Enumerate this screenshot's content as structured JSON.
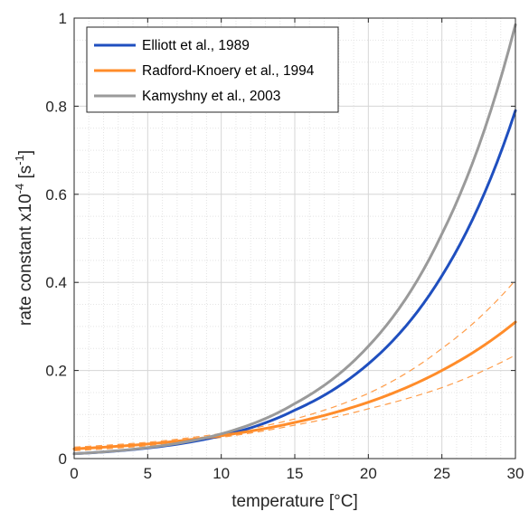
{
  "chart_data": {
    "type": "line",
    "xlabel": "temperature [°C]",
    "ylabel": {
      "prefix": "rate constant x10",
      "exponent": "-4",
      "unit_open": " [s",
      "unit_exponent": "-1",
      "unit_close": "]"
    },
    "xlim": [
      0,
      30
    ],
    "ylim": [
      0,
      1
    ],
    "x_ticks": [
      0,
      5,
      10,
      15,
      20,
      25,
      30
    ],
    "y_ticks": [
      0,
      0.2,
      0.4,
      0.6,
      0.8,
      1
    ],
    "x_tick_labels": [
      "0",
      "5",
      "10",
      "15",
      "20",
      "25",
      "30"
    ],
    "y_tick_labels": [
      "0",
      "0.2",
      "0.4",
      "0.6",
      "0.8",
      "1"
    ],
    "grid": true,
    "minor_grid": true,
    "legend_position": "top-left",
    "series": [
      {
        "name": "Elliott et al., 1989",
        "color": "#1f4fbf",
        "x": [
          0,
          5,
          10,
          11,
          15,
          20,
          25,
          30
        ],
        "y": [
          0.011,
          0.024,
          0.052,
          0.06,
          0.11,
          0.215,
          0.415,
          0.79
        ]
      },
      {
        "name": "Radford-Knoery et al., 1994",
        "color": "#ff8c2a",
        "x": [
          0,
          5,
          10,
          11,
          15,
          20,
          25,
          30
        ],
        "y": [
          0.022,
          0.033,
          0.052,
          0.057,
          0.082,
          0.128,
          0.2,
          0.31
        ],
        "bounds": {
          "upper": [
            0.026,
            0.037,
            0.057,
            0.062,
            0.09,
            0.148,
            0.25,
            0.405
          ],
          "lower": [
            0.018,
            0.029,
            0.048,
            0.053,
            0.076,
            0.113,
            0.161,
            0.235
          ]
        }
      },
      {
        "name": "Kamyshny et al., 2003",
        "color": "#9a9a9a",
        "x": [
          0,
          5,
          10,
          11,
          15,
          20,
          25,
          30
        ],
        "y": [
          0.011,
          0.025,
          0.056,
          0.066,
          0.125,
          0.255,
          0.51,
          0.985
        ]
      }
    ]
  }
}
